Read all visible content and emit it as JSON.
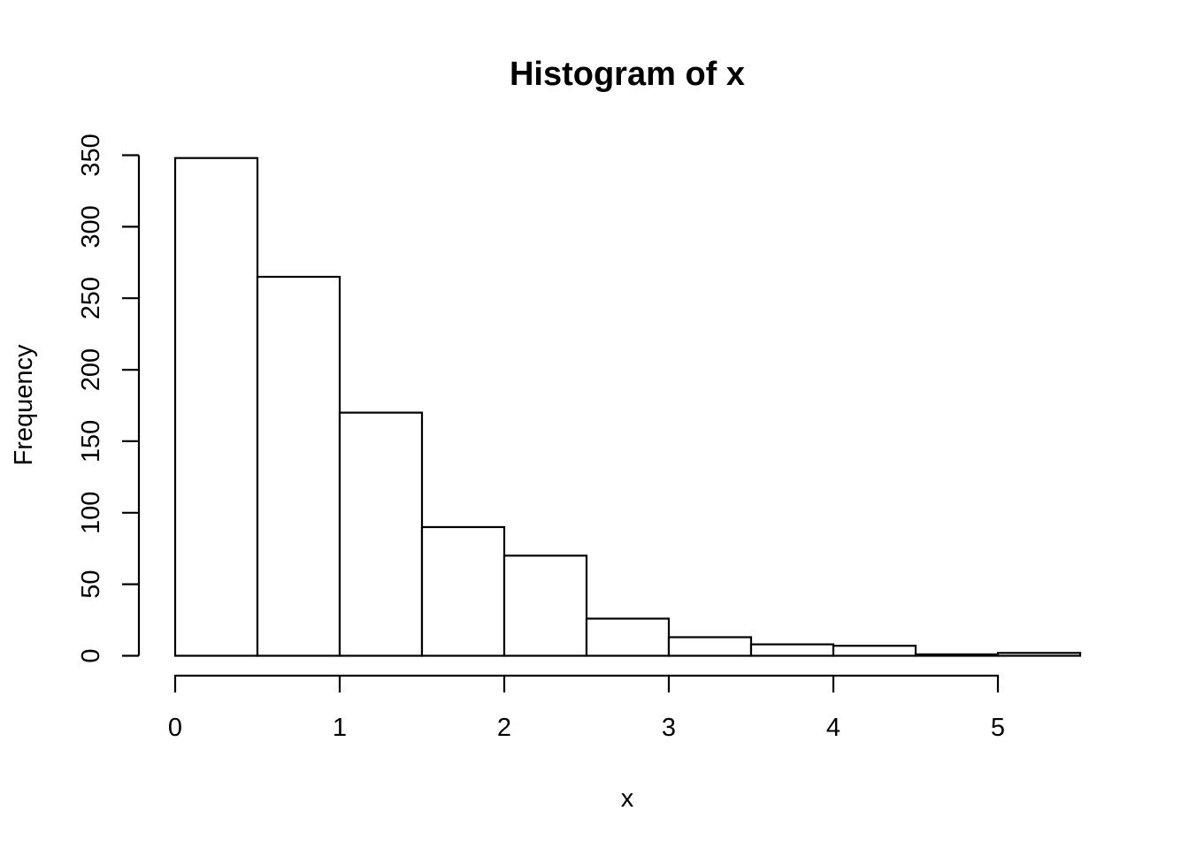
{
  "chart_data": {
    "type": "bar",
    "subtype": "histogram",
    "title": "Histogram of x",
    "xlabel": "x",
    "ylabel": "Frequency",
    "breaks": [
      0,
      0.5,
      1.0,
      1.5,
      2.0,
      2.5,
      3.0,
      3.5,
      4.0,
      4.5,
      5.0,
      5.5
    ],
    "counts": [
      348,
      265,
      170,
      90,
      70,
      26,
      13,
      8,
      7,
      1,
      2
    ],
    "x_ticks": [
      0,
      1,
      2,
      3,
      4,
      5
    ],
    "y_ticks": [
      0,
      50,
      100,
      150,
      200,
      250,
      300,
      350
    ],
    "xlim": [
      0,
      5.5
    ],
    "ylim": [
      0,
      350
    ],
    "grid": false,
    "legend_position": "none",
    "bar_fill": "#FFFFFF",
    "line_color": "#000000",
    "background": "#FFFFFF"
  }
}
